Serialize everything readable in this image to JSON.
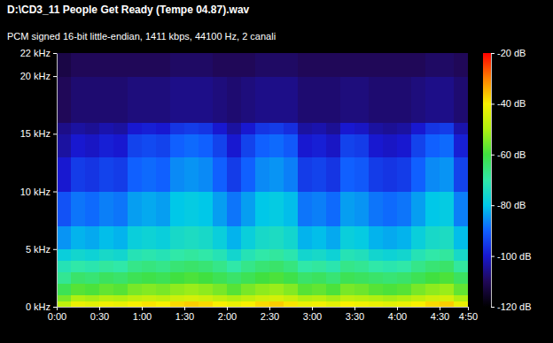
{
  "chart_data": {
    "type": "heatmap",
    "title": "D:\\CD3_11 People Get Ready (Tempe 04.87).wav",
    "subtitle": "PCM signed 16-bit little-endian, 1411 kbps, 44100 Hz, 2 canali",
    "x_bins": [
      0,
      10,
      20,
      30,
      40,
      50,
      60,
      70,
      80,
      90,
      100,
      110,
      120,
      130,
      140,
      150,
      160,
      170,
      180,
      190,
      200,
      210,
      220,
      230,
      240,
      250,
      260,
      270,
      280,
      290
    ],
    "y_bins": [
      0,
      0.5,
      1,
      2,
      3,
      4,
      5,
      7,
      10,
      13,
      15,
      16,
      20,
      22
    ],
    "values": [
      [
        -48,
        -42,
        -43,
        -41,
        -42,
        -40,
        -39,
        -40,
        -38,
        -37,
        -38,
        -40,
        -42,
        -40,
        -38,
        -37,
        -39,
        -42,
        -41,
        -43,
        -40,
        -41,
        -42,
        -43,
        -42,
        -40,
        -38,
        -37,
        -42
      ],
      [
        -55,
        -50,
        -51,
        -49,
        -50,
        -48,
        -47,
        -48,
        -46,
        -45,
        -46,
        -48,
        -50,
        -48,
        -46,
        -45,
        -47,
        -50,
        -49,
        -51,
        -48,
        -49,
        -50,
        -51,
        -50,
        -48,
        -46,
        -45,
        -50
      ],
      [
        -62,
        -58,
        -59,
        -57,
        -58,
        -55,
        -54,
        -55,
        -53,
        -52,
        -53,
        -55,
        -58,
        -55,
        -53,
        -52,
        -54,
        -58,
        -57,
        -59,
        -55,
        -56,
        -58,
        -59,
        -58,
        -55,
        -53,
        -52,
        -57
      ],
      [
        -68,
        -64,
        -65,
        -63,
        -64,
        -62,
        -61,
        -62,
        -60,
        -59,
        -60,
        -62,
        -64,
        -62,
        -60,
        -59,
        -61,
        -64,
        -63,
        -65,
        -62,
        -63,
        -64,
        -65,
        -64,
        -62,
        -60,
        -59,
        -63
      ],
      [
        -72,
        -70,
        -71,
        -69,
        -70,
        -67,
        -66,
        -67,
        -65,
        -64,
        -65,
        -67,
        -70,
        -67,
        -65,
        -64,
        -66,
        -70,
        -69,
        -71,
        -67,
        -68,
        -70,
        -71,
        -70,
        -67,
        -65,
        -64,
        -69
      ],
      [
        -78,
        -76,
        -77,
        -75,
        -76,
        -72,
        -71,
        -72,
        -70,
        -69,
        -70,
        -72,
        -76,
        -72,
        -70,
        -69,
        -71,
        -76,
        -75,
        -77,
        -72,
        -73,
        -76,
        -77,
        -76,
        -72,
        -70,
        -69,
        -75
      ],
      [
        -85,
        -82,
        -83,
        -81,
        -82,
        -78,
        -77,
        -78,
        -75,
        -74,
        -75,
        -78,
        -82,
        -78,
        -75,
        -74,
        -76,
        -82,
        -81,
        -83,
        -78,
        -79,
        -82,
        -83,
        -82,
        -78,
        -75,
        -74,
        -81
      ],
      [
        -92,
        -88,
        -89,
        -87,
        -88,
        -84,
        -83,
        -84,
        -80,
        -79,
        -80,
        -84,
        -88,
        -84,
        -80,
        -79,
        -81,
        -88,
        -87,
        -89,
        -84,
        -85,
        -88,
        -89,
        -88,
        -84,
        -80,
        -79,
        -87
      ],
      [
        -100,
        -95,
        -96,
        -94,
        -95,
        -90,
        -89,
        -90,
        -86,
        -85,
        -86,
        -90,
        -95,
        -90,
        -86,
        -85,
        -87,
        -95,
        -94,
        -96,
        -90,
        -91,
        -95,
        -96,
        -95,
        -90,
        -86,
        -85,
        -94
      ],
      [
        -104,
        -100,
        -101,
        -99,
        -100,
        -94,
        -93,
        -94,
        -90,
        -89,
        -90,
        -94,
        -100,
        -94,
        -90,
        -89,
        -91,
        -100,
        -99,
        -101,
        -94,
        -95,
        -100,
        -101,
        -100,
        -94,
        -90,
        -89,
        -99
      ],
      [
        -106,
        -104,
        -105,
        -103,
        -104,
        -100,
        -99,
        -100,
        -96,
        -95,
        -96,
        -100,
        -104,
        -100,
        -96,
        -95,
        -97,
        -104,
        -103,
        -105,
        -100,
        -101,
        -104,
        -105,
        -104,
        -100,
        -96,
        -95,
        -103
      ],
      [
        -110,
        -108,
        -108,
        -108,
        -108,
        -107,
        -107,
        -107,
        -106,
        -106,
        -106,
        -107,
        -108,
        -107,
        -106,
        -106,
        -106,
        -108,
        -108,
        -108,
        -107,
        -107,
        -108,
        -108,
        -108,
        -107,
        -106,
        -106,
        -108
      ],
      [
        -112,
        -110,
        -110,
        -110,
        -110,
        -110,
        -110,
        -110,
        -109,
        -109,
        -109,
        -110,
        -110,
        -110,
        -109,
        -109,
        -109,
        -110,
        -110,
        -110,
        -110,
        -110,
        -110,
        -110,
        -110,
        -110,
        -109,
        -109,
        -110
      ]
    ],
    "xlim": [
      0,
      290
    ],
    "xticks": [
      {
        "value": 0,
        "label": "0:00"
      },
      {
        "value": 30,
        "label": "0:30"
      },
      {
        "value": 60,
        "label": "1:00"
      },
      {
        "value": 90,
        "label": "1:30"
      },
      {
        "value": 120,
        "label": "2:00"
      },
      {
        "value": 150,
        "label": "2:30"
      },
      {
        "value": 180,
        "label": "3:00"
      },
      {
        "value": 210,
        "label": "3:30"
      },
      {
        "value": 240,
        "label": "4:00"
      },
      {
        "value": 270,
        "label": "4:30"
      },
      {
        "value": 290,
        "label": "4:50"
      }
    ],
    "ylim": [
      0,
      22
    ],
    "yticks": [
      {
        "value": 0,
        "label": "0 kHz"
      },
      {
        "value": 5,
        "label": "5 kHz"
      },
      {
        "value": 10,
        "label": "10 kHz"
      },
      {
        "value": 15,
        "label": "15 kHz"
      },
      {
        "value": 20,
        "label": "20 kHz"
      },
      {
        "value": 22,
        "label": "22 kHz"
      }
    ],
    "zlim": [
      -120,
      -20
    ],
    "zticks": [
      {
        "value": -20,
        "label": "-20 dB"
      },
      {
        "value": -40,
        "label": "-40 dB"
      },
      {
        "value": -60,
        "label": "-60 dB"
      },
      {
        "value": -80,
        "label": "-80 dB"
      },
      {
        "value": -100,
        "label": "-100 dB"
      },
      {
        "value": -120,
        "label": "-120 dB"
      }
    ]
  }
}
